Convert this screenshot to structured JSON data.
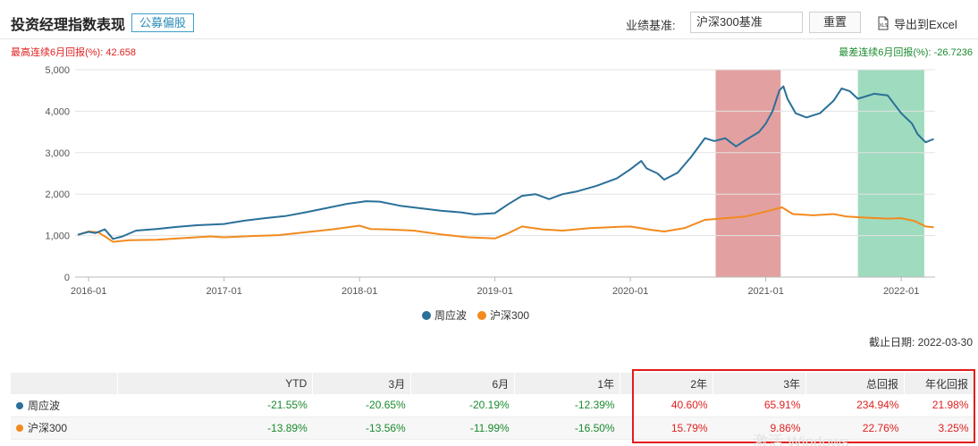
{
  "header": {
    "title": "投资经理指数表现",
    "tag": "公募偏股",
    "benchmark_label": "业绩基准:",
    "benchmark_value": "沪深300基准",
    "reset_label": "重置",
    "export_label": "导出到Excel",
    "export_icon": "excel-xls-icon"
  },
  "drawdown_info": {
    "max_up": "最高连续6月回报(%): 42.658",
    "max_down": "最差连续6月回报(%): -26.7236"
  },
  "chart_data": {
    "type": "line",
    "title": "",
    "xlabel": "",
    "ylabel": "",
    "ylim": [
      0,
      5000
    ],
    "yticks": [
      0,
      1000,
      2000,
      3000,
      4000,
      5000
    ],
    "ytick_labels": [
      "0",
      "1,000",
      "2,000",
      "3,000",
      "4,000",
      "5,000"
    ],
    "xlim": [
      2015.9,
      2022.25
    ],
    "xticks": [
      2016,
      2017,
      2018,
      2019,
      2020,
      2021,
      2022
    ],
    "xtick_labels": [
      "2016-01",
      "2017-01",
      "2018-01",
      "2019-01",
      "2020-01",
      "2021-01",
      "2022-01"
    ],
    "grid": "horizontal",
    "legend": "bottom-center",
    "highlight_bands": [
      {
        "kind": "best",
        "x0": 2020.63,
        "x1": 2021.11,
        "color": "#d98080"
      },
      {
        "kind": "worst",
        "x0": 2021.68,
        "x1": 2022.17,
        "color": "#7fcfa8"
      }
    ],
    "series": [
      {
        "name": "周应波",
        "color": "#2a7098",
        "points": [
          [
            2015.92,
            1020
          ],
          [
            2016.0,
            1090
          ],
          [
            2016.05,
            1060
          ],
          [
            2016.12,
            1150
          ],
          [
            2016.18,
            920
          ],
          [
            2016.25,
            980
          ],
          [
            2016.35,
            1120
          ],
          [
            2016.5,
            1160
          ],
          [
            2016.65,
            1210
          ],
          [
            2016.8,
            1250
          ],
          [
            2017.0,
            1280
          ],
          [
            2017.15,
            1360
          ],
          [
            2017.3,
            1420
          ],
          [
            2017.45,
            1470
          ],
          [
            2017.6,
            1560
          ],
          [
            2017.75,
            1660
          ],
          [
            2017.9,
            1760
          ],
          [
            2018.05,
            1830
          ],
          [
            2018.15,
            1820
          ],
          [
            2018.3,
            1720
          ],
          [
            2018.45,
            1660
          ],
          [
            2018.6,
            1600
          ],
          [
            2018.75,
            1560
          ],
          [
            2018.85,
            1510
          ],
          [
            2019.0,
            1540
          ],
          [
            2019.1,
            1760
          ],
          [
            2019.2,
            1960
          ],
          [
            2019.3,
            2000
          ],
          [
            2019.4,
            1880
          ],
          [
            2019.5,
            2000
          ],
          [
            2019.6,
            2060
          ],
          [
            2019.75,
            2200
          ],
          [
            2019.9,
            2380
          ],
          [
            2020.0,
            2600
          ],
          [
            2020.08,
            2800
          ],
          [
            2020.12,
            2620
          ],
          [
            2020.2,
            2500
          ],
          [
            2020.25,
            2350
          ],
          [
            2020.35,
            2520
          ],
          [
            2020.45,
            2900
          ],
          [
            2020.55,
            3350
          ],
          [
            2020.62,
            3280
          ],
          [
            2020.7,
            3350
          ],
          [
            2020.78,
            3150
          ],
          [
            2020.85,
            3300
          ],
          [
            2020.95,
            3500
          ],
          [
            2021.0,
            3700
          ],
          [
            2021.05,
            4000
          ],
          [
            2021.1,
            4500
          ],
          [
            2021.13,
            4600
          ],
          [
            2021.16,
            4300
          ],
          [
            2021.22,
            3950
          ],
          [
            2021.3,
            3850
          ],
          [
            2021.4,
            3950
          ],
          [
            2021.5,
            4250
          ],
          [
            2021.56,
            4550
          ],
          [
            2021.62,
            4480
          ],
          [
            2021.68,
            4300
          ],
          [
            2021.8,
            4420
          ],
          [
            2021.9,
            4380
          ],
          [
            2022.0,
            3950
          ],
          [
            2022.08,
            3700
          ],
          [
            2022.12,
            3450
          ],
          [
            2022.18,
            3250
          ],
          [
            2022.24,
            3330
          ]
        ]
      },
      {
        "name": "沪深300",
        "color": "#f28a1e",
        "points": [
          [
            2015.92,
            1020
          ],
          [
            2016.0,
            1100
          ],
          [
            2016.07,
            1080
          ],
          [
            2016.12,
            980
          ],
          [
            2016.18,
            850
          ],
          [
            2016.3,
            890
          ],
          [
            2016.5,
            900
          ],
          [
            2016.7,
            940
          ],
          [
            2016.9,
            980
          ],
          [
            2017.0,
            960
          ],
          [
            2017.2,
            990
          ],
          [
            2017.4,
            1010
          ],
          [
            2017.6,
            1080
          ],
          [
            2017.8,
            1150
          ],
          [
            2018.0,
            1240
          ],
          [
            2018.08,
            1160
          ],
          [
            2018.2,
            1150
          ],
          [
            2018.4,
            1120
          ],
          [
            2018.6,
            1030
          ],
          [
            2018.8,
            960
          ],
          [
            2019.0,
            930
          ],
          [
            2019.1,
            1060
          ],
          [
            2019.2,
            1220
          ],
          [
            2019.35,
            1150
          ],
          [
            2019.5,
            1120
          ],
          [
            2019.7,
            1180
          ],
          [
            2019.9,
            1210
          ],
          [
            2020.0,
            1220
          ],
          [
            2020.15,
            1140
          ],
          [
            2020.25,
            1100
          ],
          [
            2020.4,
            1180
          ],
          [
            2020.55,
            1380
          ],
          [
            2020.7,
            1420
          ],
          [
            2020.85,
            1460
          ],
          [
            2021.0,
            1580
          ],
          [
            2021.12,
            1680
          ],
          [
            2021.2,
            1520
          ],
          [
            2021.35,
            1490
          ],
          [
            2021.5,
            1520
          ],
          [
            2021.6,
            1460
          ],
          [
            2021.75,
            1430
          ],
          [
            2021.9,
            1410
          ],
          [
            2022.0,
            1420
          ],
          [
            2022.1,
            1350
          ],
          [
            2022.18,
            1220
          ],
          [
            2022.24,
            1200
          ]
        ]
      }
    ]
  },
  "as_of": "截止日期: 2022-03-30",
  "table": {
    "headers": [
      "",
      "YTD",
      "3月",
      "6月",
      "1年",
      "2年",
      "3年",
      "总回报",
      "年化回报"
    ],
    "rows": [
      {
        "name": "周应波",
        "dot_color": "#2a7098",
        "values": [
          "-21.55%",
          "-20.65%",
          "-20.19%",
          "-12.39%",
          "40.60%",
          "65.91%",
          "234.94%",
          "21.98%"
        ],
        "signs": [
          "neg",
          "neg",
          "neg",
          "neg",
          "pos",
          "pos",
          "pos",
          "pos"
        ]
      },
      {
        "name": "沪深300",
        "dot_color": "#f28a1e",
        "values": [
          "-13.89%",
          "-13.56%",
          "-11.99%",
          "-16.50%",
          "15.79%",
          "9.86%",
          "22.76%",
          "3.25%"
        ],
        "signs": [
          "neg",
          "neg",
          "neg",
          "neg",
          "pos",
          "pos",
          "pos",
          "pos"
        ]
      }
    ]
  },
  "watermark": "激活 Windows"
}
